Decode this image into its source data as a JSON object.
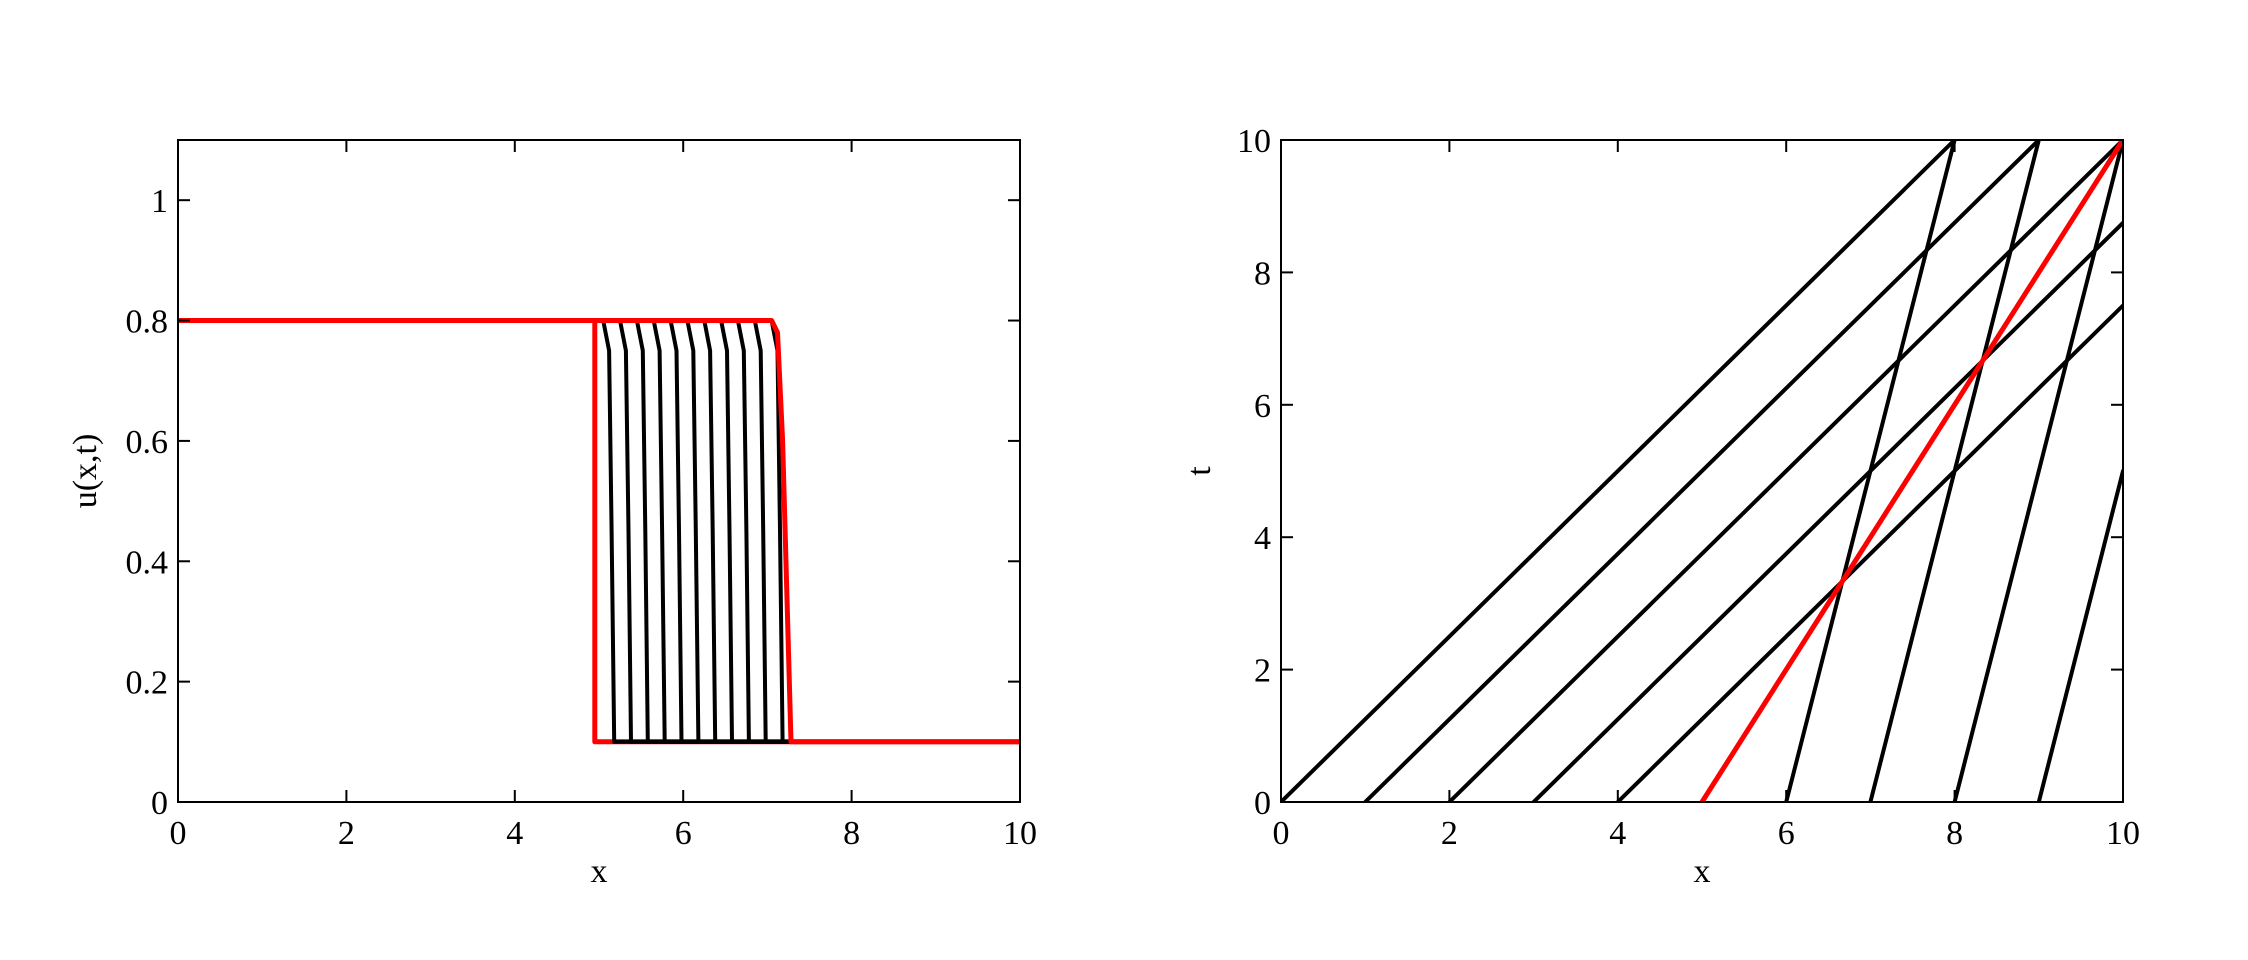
{
  "chart_data": [
    {
      "type": "line",
      "title": "",
      "xlabel": "x",
      "ylabel": "u(x,t)",
      "xlim": [
        0,
        10
      ],
      "ylim": [
        0,
        1.1
      ],
      "xticks": [
        0,
        2,
        4,
        6,
        8,
        10
      ],
      "yticks": [
        0,
        0.2,
        0.4,
        0.6,
        0.8,
        1
      ],
      "xtick_labels": [
        "0",
        "2",
        "4",
        "6",
        "8",
        "10"
      ],
      "ytick_labels": [
        "0",
        "0.2",
        "0.4",
        "0.6",
        "0.8",
        "1"
      ],
      "grid": false,
      "left_state": 0.8,
      "right_state": 0.1,
      "series": [
        {
          "color": "#ff0000",
          "x": [
            0,
            4.95,
            4.95,
            10
          ],
          "y": [
            0.8,
            0.8,
            0.1,
            0.1
          ]
        },
        {
          "color": "#000000",
          "x": [
            0,
            5.05,
            5.12,
            5.15,
            5.18,
            10
          ],
          "y": [
            0.8,
            0.8,
            0.75,
            0.45,
            0.1,
            0.1
          ]
        },
        {
          "color": "#000000",
          "x": [
            0,
            5.25,
            5.32,
            5.35,
            5.38,
            10
          ],
          "y": [
            0.8,
            0.8,
            0.75,
            0.45,
            0.1,
            0.1
          ]
        },
        {
          "color": "#000000",
          "x": [
            0,
            5.45,
            5.52,
            5.55,
            5.58,
            10
          ],
          "y": [
            0.8,
            0.8,
            0.75,
            0.45,
            0.1,
            0.1
          ]
        },
        {
          "color": "#000000",
          "x": [
            0,
            5.65,
            5.72,
            5.75,
            5.78,
            10
          ],
          "y": [
            0.8,
            0.8,
            0.75,
            0.45,
            0.1,
            0.1
          ]
        },
        {
          "color": "#000000",
          "x": [
            0,
            5.85,
            5.92,
            5.95,
            5.98,
            10
          ],
          "y": [
            0.8,
            0.8,
            0.75,
            0.45,
            0.1,
            0.1
          ]
        },
        {
          "color": "#000000",
          "x": [
            0,
            6.05,
            6.12,
            6.15,
            6.18,
            10
          ],
          "y": [
            0.8,
            0.8,
            0.75,
            0.45,
            0.1,
            0.1
          ]
        },
        {
          "color": "#000000",
          "x": [
            0,
            6.25,
            6.32,
            6.35,
            6.38,
            10
          ],
          "y": [
            0.8,
            0.8,
            0.75,
            0.45,
            0.1,
            0.1
          ]
        },
        {
          "color": "#000000",
          "x": [
            0,
            6.45,
            6.52,
            6.55,
            6.58,
            10
          ],
          "y": [
            0.8,
            0.8,
            0.75,
            0.45,
            0.1,
            0.1
          ]
        },
        {
          "color": "#000000",
          "x": [
            0,
            6.65,
            6.72,
            6.75,
            6.78,
            10
          ],
          "y": [
            0.8,
            0.8,
            0.75,
            0.45,
            0.1,
            0.1
          ]
        },
        {
          "color": "#000000",
          "x": [
            0,
            6.85,
            6.92,
            6.95,
            6.98,
            10
          ],
          "y": [
            0.8,
            0.8,
            0.75,
            0.45,
            0.1,
            0.1
          ]
        },
        {
          "color": "#000000",
          "x": [
            0,
            7.05,
            7.12,
            7.15,
            7.18,
            10
          ],
          "y": [
            0.8,
            0.8,
            0.75,
            0.45,
            0.1,
            0.1
          ]
        },
        {
          "color": "#ff0000",
          "x": [
            0,
            7.05,
            7.12,
            7.18,
            7.28,
            10
          ],
          "y": [
            0.8,
            0.8,
            0.78,
            0.6,
            0.1,
            0.1
          ]
        }
      ]
    },
    {
      "type": "line",
      "title": "",
      "xlabel": "x",
      "ylabel": "t",
      "xlim": [
        0,
        10
      ],
      "ylim": [
        0,
        10
      ],
      "xticks": [
        0,
        2,
        4,
        6,
        8,
        10
      ],
      "yticks": [
        0,
        2,
        4,
        6,
        8,
        10
      ],
      "xtick_labels": [
        "0",
        "2",
        "4",
        "6",
        "8",
        "10"
      ],
      "ytick_labels": [
        "0",
        "2",
        "4",
        "6",
        "8",
        "10"
      ],
      "grid": false,
      "series": [
        {
          "color": "#000000",
          "x": [
            0,
            8
          ],
          "y": [
            0,
            10
          ]
        },
        {
          "color": "#000000",
          "x": [
            1,
            9
          ],
          "y": [
            0,
            10
          ]
        },
        {
          "color": "#000000",
          "x": [
            2,
            10
          ],
          "y": [
            0,
            10
          ]
        },
        {
          "color": "#000000",
          "x": [
            3,
            10
          ],
          "y": [
            0,
            8.75
          ]
        },
        {
          "color": "#000000",
          "x": [
            4,
            10
          ],
          "y": [
            0,
            7.5
          ]
        },
        {
          "color": "#000000",
          "x": [
            6,
            8
          ],
          "y": [
            0,
            10
          ]
        },
        {
          "color": "#000000",
          "x": [
            7,
            9
          ],
          "y": [
            0,
            10
          ]
        },
        {
          "color": "#000000",
          "x": [
            8,
            10
          ],
          "y": [
            0,
            10
          ]
        },
        {
          "color": "#000000",
          "x": [
            9,
            10
          ],
          "y": [
            0,
            5
          ]
        },
        {
          "color": "#ff0000",
          "x": [
            5,
            10
          ],
          "y": [
            0,
            10
          ]
        }
      ]
    }
  ]
}
